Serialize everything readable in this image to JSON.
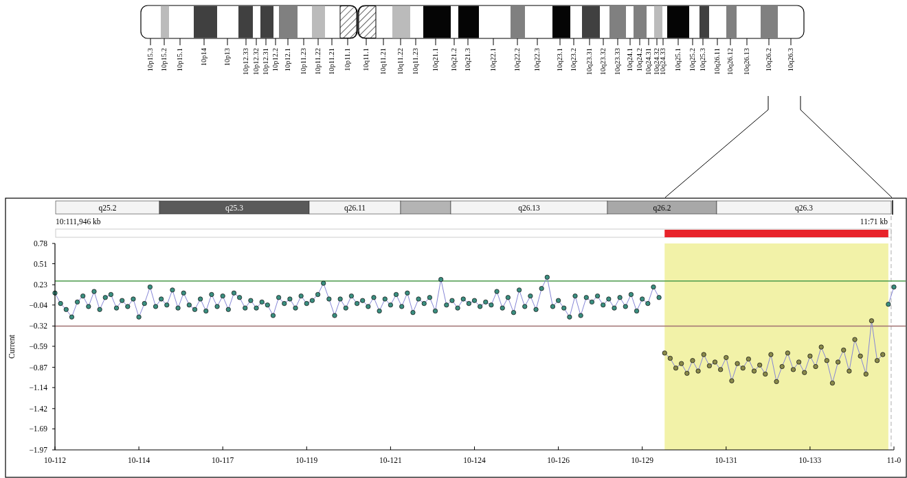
{
  "chart_data": {
    "type": "line",
    "ylabel": "Current",
    "marker": "circle",
    "line_style": "solid",
    "grid": false,
    "categories": [
      "10-112",
      null,
      null,
      null,
      null,
      null,
      null,
      null,
      null,
      null,
      null,
      null,
      null,
      null,
      null,
      "10-114",
      null,
      null,
      null,
      null,
      null,
      null,
      null,
      null,
      null,
      null,
      null,
      null,
      null,
      null,
      "10-117",
      null,
      null,
      null,
      null,
      null,
      null,
      null,
      null,
      null,
      null,
      null,
      null,
      null,
      null,
      "10-119",
      null,
      null,
      null,
      null,
      null,
      null,
      null,
      null,
      null,
      null,
      null,
      null,
      null,
      null,
      "10-121",
      null,
      null,
      null,
      null,
      null,
      null,
      null,
      null,
      null,
      null,
      null,
      null,
      null,
      null,
      "10-124",
      null,
      null,
      null,
      null,
      null,
      null,
      null,
      null,
      null,
      null,
      null,
      null,
      null,
      null,
      "10-126",
      null,
      null,
      null,
      null,
      null,
      null,
      null,
      null,
      null,
      null,
      null,
      null,
      null,
      null,
      "10-129",
      null,
      null,
      null,
      null,
      null,
      null,
      null,
      null,
      null,
      null,
      null,
      null,
      null,
      null,
      "10-131",
      null,
      null,
      null,
      null,
      null,
      null,
      null,
      null,
      null,
      null,
      null,
      null,
      null,
      null,
      "10-133",
      null,
      null,
      null,
      null,
      null,
      null,
      null,
      null,
      null,
      null,
      null,
      null,
      null,
      null,
      "11-0"
    ],
    "ylim": [
      -1.97,
      0.78
    ],
    "yticks": [
      0.78,
      0.51,
      0.23,
      -0.04,
      -0.32,
      -0.59,
      -0.87,
      -1.14,
      -1.42,
      -1.69,
      -1.97
    ],
    "ref_lines": [
      {
        "axis": "y",
        "value": 0.28,
        "color": "#4a9a4a",
        "line_style": "solid"
      },
      {
        "axis": "y",
        "value": -0.32,
        "color": "#a07070",
        "line_style": "solid"
      }
    ],
    "series": [
      {
        "color": "#3a8f80",
        "values": [
          0.12,
          -0.02,
          -0.1,
          -0.2,
          0.0,
          0.08,
          -0.06,
          0.14,
          -0.1,
          0.06,
          0.1,
          -0.08,
          0.02,
          -0.06,
          0.04,
          -0.2,
          -0.02,
          0.2,
          -0.06,
          0.04,
          -0.04,
          0.16,
          -0.08,
          0.12,
          -0.04,
          -0.1,
          0.04,
          -0.12,
          0.1,
          -0.06,
          0.08,
          -0.1,
          0.12,
          0.06,
          -0.08,
          0.02,
          -0.08,
          0.0,
          -0.04,
          -0.18,
          0.06,
          -0.02,
          0.04,
          -0.08,
          0.08,
          -0.02,
          0.02,
          0.1,
          0.25,
          0.04,
          -0.18,
          0.04,
          -0.08,
          0.08,
          -0.02,
          0.02,
          -0.06,
          0.06,
          -0.12,
          0.04,
          -0.04,
          0.1,
          -0.06,
          0.12,
          -0.14,
          0.04,
          -0.02,
          0.06,
          -0.12,
          0.3,
          -0.04,
          0.02,
          -0.08,
          0.04,
          -0.02,
          0.02,
          -0.06,
          0.0,
          -0.04,
          0.14,
          -0.08,
          0.06,
          -0.14,
          0.16,
          -0.06,
          0.08,
          -0.1,
          0.18,
          0.33,
          -0.06,
          0.02,
          -0.08,
          -0.2,
          0.08,
          -0.18,
          0.06,
          0.0,
          0.08,
          -0.04,
          0.04,
          -0.08,
          0.06,
          -0.06,
          0.1,
          -0.12,
          0.04,
          -0.02,
          0.2,
          0.06,
          null,
          null,
          null,
          null,
          null,
          null,
          null,
          null,
          null,
          null,
          null,
          null,
          null,
          null,
          null,
          null,
          null,
          null,
          null,
          null,
          null,
          null,
          null,
          null,
          null,
          null,
          null,
          null,
          null,
          null,
          null,
          null,
          null,
          null,
          null,
          null,
          null,
          null,
          null,
          null,
          -0.03,
          0.2
        ]
      },
      {
        "color": "#8a8a4a",
        "values": [
          null,
          null,
          null,
          null,
          null,
          null,
          null,
          null,
          null,
          null,
          null,
          null,
          null,
          null,
          null,
          null,
          null,
          null,
          null,
          null,
          null,
          null,
          null,
          null,
          null,
          null,
          null,
          null,
          null,
          null,
          null,
          null,
          null,
          null,
          null,
          null,
          null,
          null,
          null,
          null,
          null,
          null,
          null,
          null,
          null,
          null,
          null,
          null,
          null,
          null,
          null,
          null,
          null,
          null,
          null,
          null,
          null,
          null,
          null,
          null,
          null,
          null,
          null,
          null,
          null,
          null,
          null,
          null,
          null,
          null,
          null,
          null,
          null,
          null,
          null,
          null,
          null,
          null,
          null,
          null,
          null,
          null,
          null,
          null,
          null,
          null,
          null,
          null,
          null,
          null,
          null,
          null,
          null,
          null,
          null,
          null,
          null,
          null,
          null,
          null,
          null,
          null,
          null,
          null,
          null,
          null,
          null,
          null,
          null,
          -0.68,
          -0.75,
          -0.88,
          -0.82,
          -0.95,
          -0.78,
          -0.92,
          -0.7,
          -0.85,
          -0.8,
          -0.9,
          -0.74,
          -1.05,
          -0.82,
          -0.88,
          -0.76,
          -0.92,
          -0.84,
          -0.96,
          -0.7,
          -1.06,
          -0.86,
          -0.68,
          -0.9,
          -0.8,
          -0.94,
          -0.72,
          -0.86,
          -0.6,
          -0.78,
          -1.08,
          -0.8,
          -0.64,
          -0.92,
          -0.5,
          -0.72,
          -0.96,
          -0.25,
          -0.78,
          -0.7,
          null,
          null
        ]
      }
    ],
    "annotations": [
      "10p15.3",
      "10p15.2",
      "10p15.1",
      "10p14",
      "10p13",
      "10p12.33",
      "10p12.32",
      "10p12.31",
      "10p12.2",
      "10p12.1",
      "10p11.23",
      "10p11.22",
      "10p11.21",
      "10p11.1",
      "10q11.1",
      "10q11.21",
      "10q11.22",
      "10q11.23",
      "10q21.1",
      "10q21.2",
      "10q21.3",
      "10q22.1",
      "10q22.2",
      "10q22.3",
      "10q23.1",
      "10q23.2",
      "10q23.31",
      "10q23.32",
      "10q23.33",
      "10q24.1",
      "10q24.2",
      "10q24.31",
      "10q24.32",
      "10q24.33",
      "10q25.1",
      "10q25.2",
      "10q25.3",
      "10q26.11",
      "10q26.12",
      "10q26.13",
      "10q26.2",
      "10q26.3",
      "q25.2",
      "q25.3",
      "q26.11",
      "q26.13",
      "q26.2",
      "q26.3",
      "10:111,946 kb",
      "11:71 kb"
    ]
  }
}
